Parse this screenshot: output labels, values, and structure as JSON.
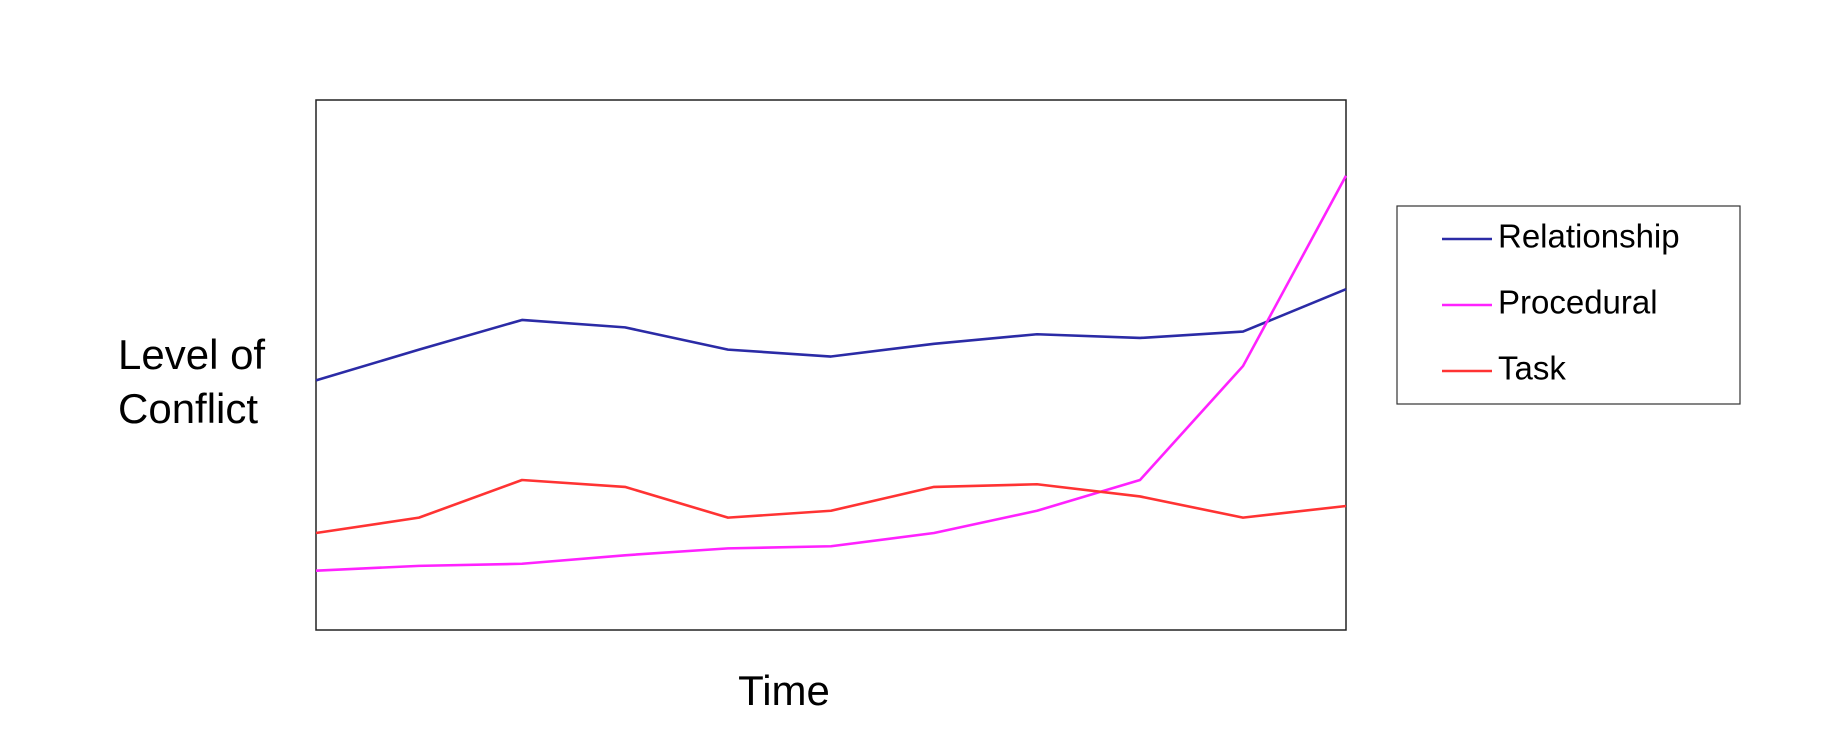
{
  "chart_data": {
    "type": "line",
    "y_label": "Level of Conflict",
    "x_label": "Time",
    "categories": [
      null,
      null,
      null,
      null,
      null,
      null,
      null,
      null,
      null,
      null,
      null
    ],
    "ylim": [
      0,
      100
    ],
    "legend": "right",
    "series": [
      {
        "name": "Relationship",
        "color": "#2b2ba6",
        "values": [
          47.1,
          52.9,
          58.5,
          57.1,
          52.9,
          51.6,
          54.0,
          55.8,
          55.1,
          56.3,
          64.3
        ]
      },
      {
        "name": "Procedural",
        "color": "#ff22ff",
        "values": [
          11.2,
          12.1,
          12.5,
          14.1,
          15.4,
          15.8,
          18.3,
          22.5,
          28.3,
          49.8,
          85.7
        ]
      },
      {
        "name": "Task",
        "color": "#ff3333",
        "values": [
          18.3,
          21.2,
          28.3,
          27.0,
          21.2,
          22.5,
          27.0,
          27.5,
          25.2,
          21.2,
          23.4
        ]
      }
    ]
  }
}
